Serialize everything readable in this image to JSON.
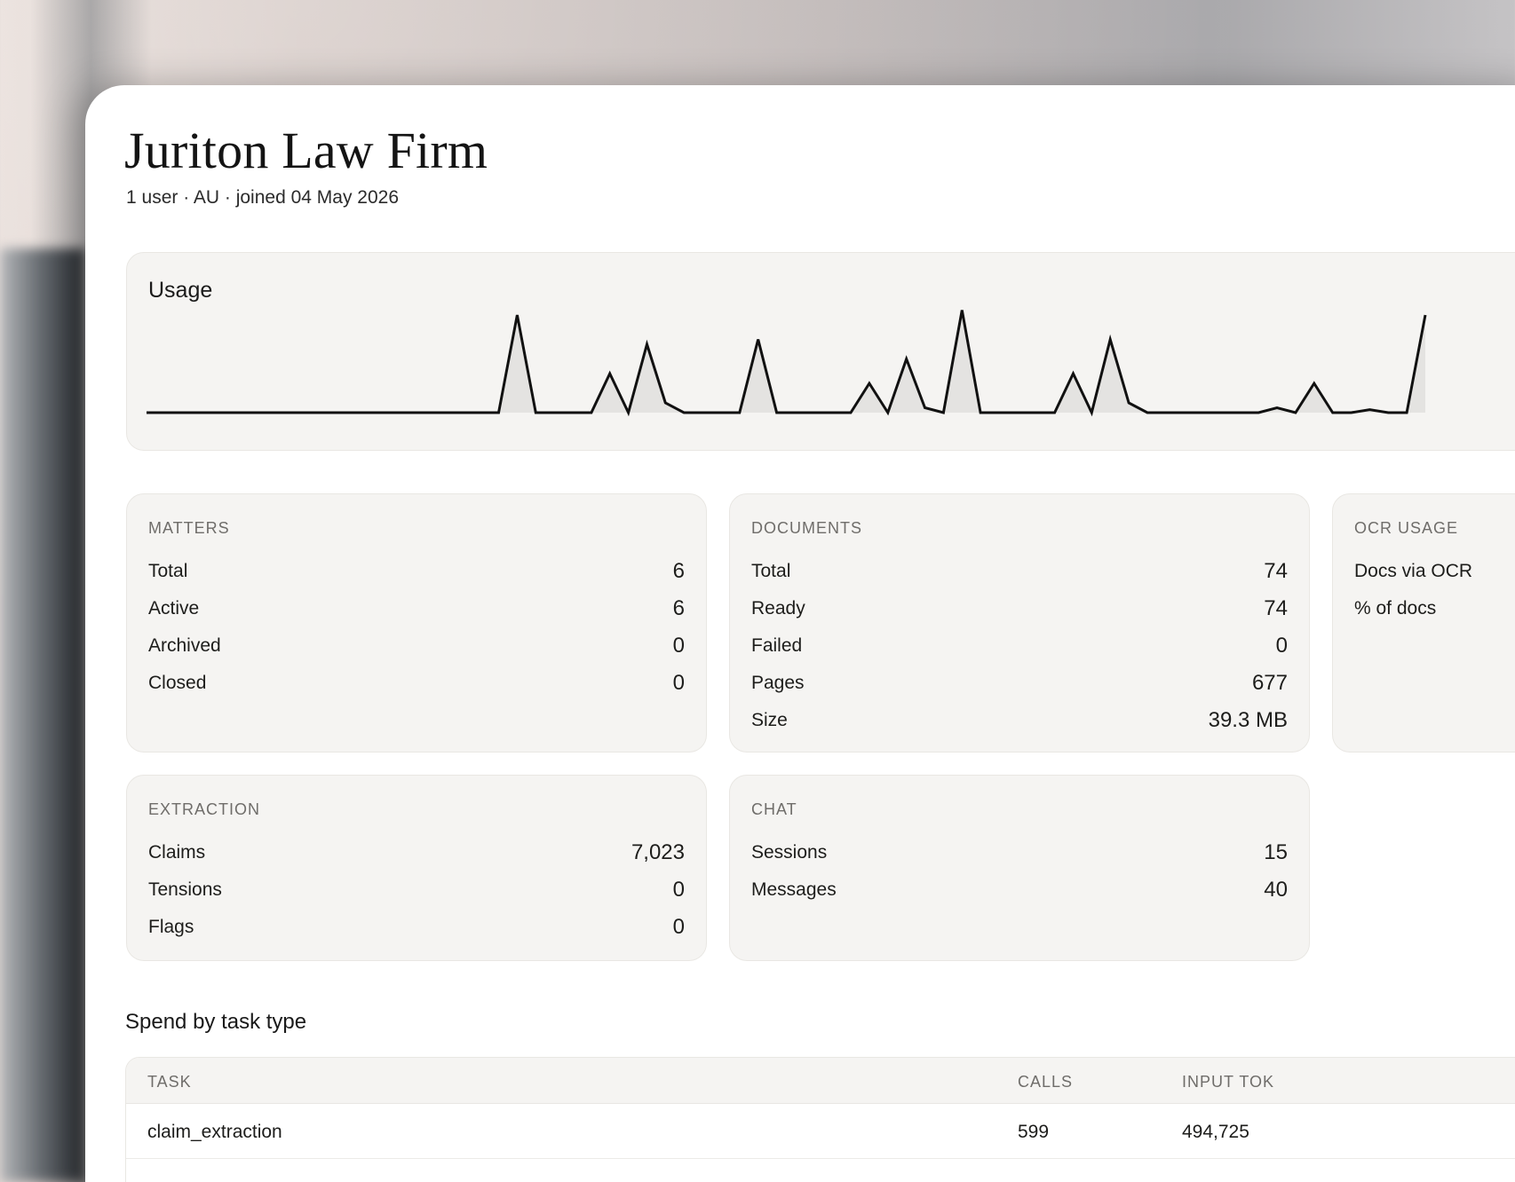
{
  "header": {
    "title": "Juriton Law Firm",
    "subtitle": "1 user · AU · joined 04 May 2026"
  },
  "usage": {
    "title": "Usage",
    "series": [
      0,
      0,
      0,
      0,
      0,
      0,
      0,
      0,
      0,
      0,
      0,
      0,
      0,
      0,
      0,
      0,
      0,
      0,
      0,
      0,
      1,
      0,
      0,
      0,
      0,
      0.4,
      0,
      0.7,
      0.1,
      0,
      0,
      0,
      0,
      0.75,
      0,
      0,
      0,
      0,
      0,
      0.3,
      0,
      0.55,
      0.05,
      0,
      1.05,
      0,
      0,
      0,
      0,
      0,
      0.4,
      0,
      0.75,
      0.1,
      0,
      0,
      0,
      0,
      0,
      0,
      0,
      0.05,
      0,
      0.3,
      0,
      0,
      0.03,
      0,
      0,
      1.0
    ]
  },
  "matters": {
    "label": "MATTERS",
    "rows": [
      {
        "k": "Total",
        "v": "6"
      },
      {
        "k": "Active",
        "v": "6"
      },
      {
        "k": "Archived",
        "v": "0"
      },
      {
        "k": "Closed",
        "v": "0"
      }
    ]
  },
  "documents": {
    "label": "DOCUMENTS",
    "rows": [
      {
        "k": "Total",
        "v": "74"
      },
      {
        "k": "Ready",
        "v": "74"
      },
      {
        "k": "Failed",
        "v": "0"
      },
      {
        "k": "Pages",
        "v": "677"
      },
      {
        "k": "Size",
        "v": "39.3 MB"
      }
    ]
  },
  "ocr": {
    "label": "OCR USAGE",
    "rows": [
      {
        "k": "Docs via OCR",
        "v": ""
      },
      {
        "k": "% of docs",
        "v": ""
      }
    ]
  },
  "extraction": {
    "label": "EXTRACTION",
    "rows": [
      {
        "k": "Claims",
        "v": "7,023"
      },
      {
        "k": "Tensions",
        "v": "0"
      },
      {
        "k": "Flags",
        "v": "0"
      }
    ]
  },
  "chat": {
    "label": "CHAT",
    "rows": [
      {
        "k": "Sessions",
        "v": "15"
      },
      {
        "k": "Messages",
        "v": "40"
      }
    ]
  },
  "spend": {
    "title": "Spend by task type",
    "columns": [
      "TASK",
      "CALLS",
      "INPUT TOK"
    ],
    "rows": [
      {
        "task": "claim_extraction",
        "calls": "599",
        "input_tok": "494,725"
      }
    ]
  }
}
